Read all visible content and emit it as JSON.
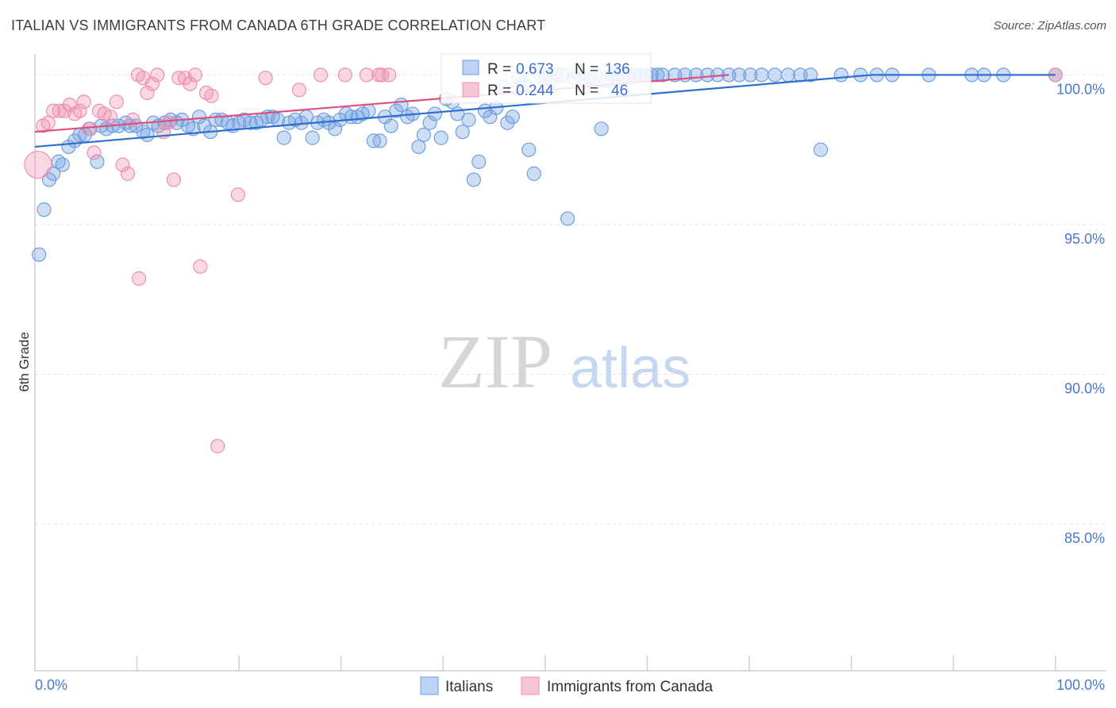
{
  "title": "ITALIAN VS IMMIGRANTS FROM CANADA 6TH GRADE CORRELATION CHART",
  "source": "Source: ZipAtlas.com",
  "watermark": {
    "zip": "ZIP",
    "atlas": "atlas"
  },
  "colors": {
    "blue": "#6f9fe0",
    "blue_line": "#2f6fd0",
    "pink": "#ef8fae",
    "pink_line": "#e0507e",
    "axis_text": "#4a78c8"
  },
  "chart_data": {
    "type": "scatter",
    "title": "ITALIAN VS IMMIGRANTS FROM CANADA 6TH GRADE CORRELATION CHART",
    "xlabel": "",
    "ylabel": "6th Grade",
    "xlim": [
      0,
      105
    ],
    "ylim": [
      80.1,
      100.7
    ],
    "x_tick_labels": [
      "0.0%",
      "100.0%"
    ],
    "y_ticks": [
      100,
      95,
      90,
      85
    ],
    "y_tick_labels": [
      "100.0%",
      "95.0%",
      "90.0%",
      "85.0%"
    ],
    "legend": [
      {
        "name": "Italians",
        "color": "#6f9fe0"
      },
      {
        "name": "Immigrants from Canada",
        "color": "#ef8fae"
      }
    ],
    "stats": [
      {
        "r_label": "R =",
        "r_value": "0.673",
        "n_label": "N =",
        "n_value": "136"
      },
      {
        "r_label": "R =",
        "r_value": "0.244",
        "n_label": "N =",
        "n_value": "46"
      }
    ],
    "series": [
      {
        "name": "Italians",
        "trend": [
          [
            0,
            97.6
          ],
          [
            82,
            100.0
          ],
          [
            100,
            100.0
          ]
        ],
        "points": [
          [
            0.4,
            94.0
          ],
          [
            0.9,
            95.5
          ],
          [
            1.4,
            96.5
          ],
          [
            1.8,
            96.7
          ],
          [
            2.3,
            97.1
          ],
          [
            2.7,
            97.0
          ],
          [
            3.3,
            97.6
          ],
          [
            3.9,
            97.8
          ],
          [
            4.4,
            98.0
          ],
          [
            4.9,
            98.0
          ],
          [
            5.4,
            98.2
          ],
          [
            6.1,
            97.1
          ],
          [
            6.5,
            98.3
          ],
          [
            7.0,
            98.2
          ],
          [
            7.6,
            98.3
          ],
          [
            8.2,
            98.3
          ],
          [
            8.9,
            98.4
          ],
          [
            9.3,
            98.3
          ],
          [
            9.9,
            98.3
          ],
          [
            10.6,
            98.1
          ],
          [
            11.0,
            98.0
          ],
          [
            11.6,
            98.4
          ],
          [
            12.1,
            98.3
          ],
          [
            12.7,
            98.4
          ],
          [
            13.3,
            98.5
          ],
          [
            13.9,
            98.4
          ],
          [
            14.4,
            98.5
          ],
          [
            15.0,
            98.3
          ],
          [
            15.5,
            98.2
          ],
          [
            16.1,
            98.6
          ],
          [
            16.6,
            98.3
          ],
          [
            17.2,
            98.1
          ],
          [
            17.7,
            98.5
          ],
          [
            18.3,
            98.5
          ],
          [
            18.9,
            98.4
          ],
          [
            19.4,
            98.3
          ],
          [
            20.0,
            98.4
          ],
          [
            20.5,
            98.5
          ],
          [
            21.1,
            98.4
          ],
          [
            21.7,
            98.4
          ],
          [
            22.2,
            98.5
          ],
          [
            22.8,
            98.6
          ],
          [
            23.3,
            98.6
          ],
          [
            23.8,
            98.5
          ],
          [
            24.4,
            97.9
          ],
          [
            24.9,
            98.4
          ],
          [
            25.5,
            98.5
          ],
          [
            26.1,
            98.4
          ],
          [
            26.6,
            98.6
          ],
          [
            27.2,
            97.9
          ],
          [
            27.7,
            98.4
          ],
          [
            28.3,
            98.5
          ],
          [
            28.8,
            98.4
          ],
          [
            29.4,
            98.2
          ],
          [
            29.9,
            98.5
          ],
          [
            30.5,
            98.7
          ],
          [
            31.0,
            98.6
          ],
          [
            31.6,
            98.6
          ],
          [
            32.1,
            98.7
          ],
          [
            32.7,
            98.8
          ],
          [
            33.2,
            97.8
          ],
          [
            33.8,
            97.8
          ],
          [
            34.3,
            98.6
          ],
          [
            34.9,
            98.3
          ],
          [
            35.4,
            98.8
          ],
          [
            35.9,
            99.0
          ],
          [
            36.5,
            98.6
          ],
          [
            37.0,
            98.7
          ],
          [
            37.6,
            97.6
          ],
          [
            38.1,
            98.0
          ],
          [
            38.7,
            98.4
          ],
          [
            39.2,
            98.7
          ],
          [
            39.8,
            97.9
          ],
          [
            40.3,
            99.2
          ],
          [
            40.9,
            99.1
          ],
          [
            41.4,
            98.7
          ],
          [
            41.9,
            98.1
          ],
          [
            42.5,
            98.5
          ],
          [
            43.0,
            96.5
          ],
          [
            43.5,
            97.1
          ],
          [
            44.1,
            98.8
          ],
          [
            44.6,
            98.6
          ],
          [
            45.2,
            98.9
          ],
          [
            45.8,
            99.6
          ],
          [
            46.3,
            98.4
          ],
          [
            46.8,
            98.6
          ],
          [
            47.4,
            99.9
          ],
          [
            47.9,
            99.7
          ],
          [
            48.4,
            97.5
          ],
          [
            48.9,
            96.7
          ],
          [
            49.5,
            100.0
          ],
          [
            50.0,
            100.0
          ],
          [
            50.6,
            99.8
          ],
          [
            51.1,
            100.0
          ],
          [
            51.7,
            100.0
          ],
          [
            52.2,
            95.2
          ],
          [
            52.8,
            99.9
          ],
          [
            53.3,
            100.0
          ],
          [
            53.9,
            99.6
          ],
          [
            54.4,
            99.9
          ],
          [
            54.9,
            100.0
          ],
          [
            55.5,
            98.2
          ],
          [
            56.0,
            99.8
          ],
          [
            56.6,
            100.0
          ],
          [
            57.1,
            100.0
          ],
          [
            57.7,
            100.0
          ],
          [
            58.2,
            100.0
          ],
          [
            58.8,
            100.0
          ],
          [
            59.3,
            100.0
          ],
          [
            59.9,
            100.0
          ],
          [
            60.4,
            100.0
          ],
          [
            61.0,
            100.0
          ],
          [
            61.5,
            100.0
          ],
          [
            62.7,
            100.0
          ],
          [
            63.7,
            100.0
          ],
          [
            64.8,
            100.0
          ],
          [
            65.9,
            100.0
          ],
          [
            66.9,
            100.0
          ],
          [
            68.0,
            100.0
          ],
          [
            69.0,
            100.0
          ],
          [
            70.1,
            100.0
          ],
          [
            71.2,
            100.0
          ],
          [
            72.5,
            100.0
          ],
          [
            73.8,
            100.0
          ],
          [
            75.0,
            100.0
          ],
          [
            76.0,
            100.0
          ],
          [
            77.0,
            97.5
          ],
          [
            79.0,
            100.0
          ],
          [
            80.9,
            100.0
          ],
          [
            82.5,
            100.0
          ],
          [
            84.0,
            100.0
          ],
          [
            87.6,
            100.0
          ],
          [
            91.8,
            100.0
          ],
          [
            93.0,
            100.0
          ],
          [
            94.9,
            100.0
          ],
          [
            100.0,
            100.0
          ]
        ]
      },
      {
        "name": "Immigrants from Canada",
        "trend": [
          [
            0,
            98.1
          ],
          [
            68,
            100.0
          ]
        ],
        "points": [
          [
            0.3,
            97.0
          ],
          [
            0.8,
            98.3
          ],
          [
            1.3,
            98.4
          ],
          [
            1.8,
            98.8
          ],
          [
            2.4,
            98.8
          ],
          [
            2.9,
            98.8
          ],
          [
            3.4,
            99.0
          ],
          [
            3.9,
            98.7
          ],
          [
            4.4,
            98.8
          ],
          [
            4.8,
            99.1
          ],
          [
            5.3,
            98.2
          ],
          [
            5.8,
            97.4
          ],
          [
            6.3,
            98.8
          ],
          [
            6.8,
            98.7
          ],
          [
            7.4,
            98.6
          ],
          [
            8.0,
            99.1
          ],
          [
            8.6,
            97.0
          ],
          [
            9.1,
            96.7
          ],
          [
            9.6,
            98.5
          ],
          [
            10.1,
            100.0
          ],
          [
            10.6,
            99.9
          ],
          [
            11.0,
            99.4
          ],
          [
            11.5,
            99.7
          ],
          [
            12.0,
            100.0
          ],
          [
            12.6,
            98.1
          ],
          [
            13.1,
            98.4
          ],
          [
            13.6,
            96.5
          ],
          [
            14.1,
            99.9
          ],
          [
            14.7,
            99.9
          ],
          [
            15.2,
            99.7
          ],
          [
            15.7,
            100.0
          ],
          [
            16.2,
            93.6
          ],
          [
            16.8,
            99.4
          ],
          [
            17.3,
            99.3
          ],
          [
            17.9,
            87.6
          ],
          [
            19.9,
            96.0
          ],
          [
            22.6,
            99.9
          ],
          [
            25.9,
            99.5
          ],
          [
            28.0,
            100.0
          ],
          [
            30.4,
            100.0
          ],
          [
            32.5,
            100.0
          ],
          [
            33.7,
            100.0
          ],
          [
            34.0,
            100.0
          ],
          [
            34.7,
            100.0
          ],
          [
            10.2,
            93.2
          ],
          [
            100.0,
            100.0
          ]
        ]
      }
    ]
  }
}
